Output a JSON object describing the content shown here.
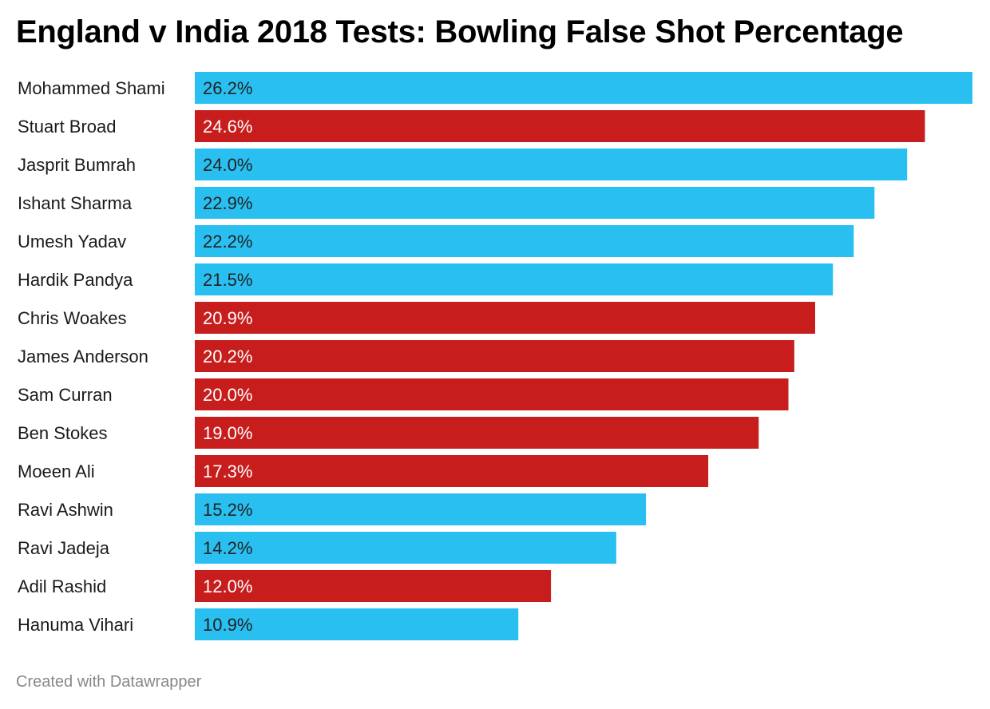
{
  "title": "England v India 2018 Tests: Bowling False Shot Percentage",
  "footer": "Created with Datawrapper",
  "colors": {
    "india": "#29c0f1",
    "england": "#c71e1d",
    "label_on_india": "#222222",
    "label_on_england": "#ffffff"
  },
  "chart_data": {
    "type": "bar",
    "orientation": "horizontal",
    "title": "England v India 2018 Tests: Bowling False Shot Percentage",
    "xlabel": "",
    "ylabel": "",
    "xlim": [
      0,
      26.2
    ],
    "grid": false,
    "legend": "none",
    "value_suffix": "%",
    "categories": [
      "Mohammed Shami",
      "Stuart Broad",
      "Jasprit Bumrah",
      "Ishant Sharma",
      "Umesh Yadav",
      "Hardik Pandya",
      "Chris Woakes",
      "James Anderson",
      "Sam Curran",
      "Ben Stokes",
      "Moeen Ali",
      "Ravi Ashwin",
      "Ravi Jadeja",
      "Adil Rashid",
      "Hanuma Vihari"
    ],
    "values": [
      26.2,
      24.6,
      24.0,
      22.9,
      22.2,
      21.5,
      20.9,
      20.2,
      20.0,
      19.0,
      17.3,
      15.2,
      14.2,
      12.0,
      10.9
    ],
    "value_labels": [
      "26.2%",
      "24.6%",
      "24.0%",
      "22.9%",
      "22.2%",
      "21.5%",
      "20.9%",
      "20.2%",
      "20.0%",
      "19.0%",
      "17.3%",
      "15.2%",
      "14.2%",
      "12.0%",
      "10.9%"
    ],
    "team": [
      "india",
      "england",
      "india",
      "india",
      "india",
      "india",
      "england",
      "england",
      "england",
      "england",
      "england",
      "india",
      "india",
      "england",
      "india"
    ]
  }
}
